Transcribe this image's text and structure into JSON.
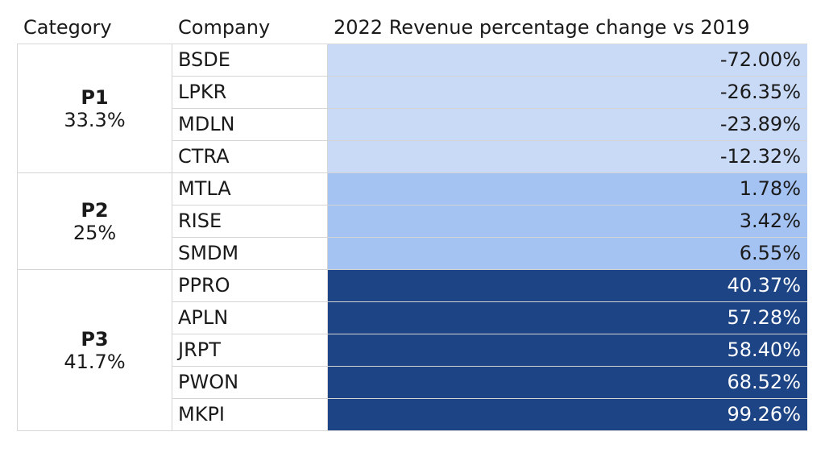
{
  "chart_data": {
    "type": "table",
    "headers": [
      "Category",
      "Company",
      "2022 Revenue percentage change vs 2019"
    ],
    "colors": {
      "P1": {
        "bg": "#c9daf6",
        "text": "#1a1a1a"
      },
      "P2": {
        "bg": "#a4c2f2",
        "text": "#1a1a1a"
      },
      "P3": {
        "bg": "#1d4485",
        "text": "#ffffff"
      }
    },
    "groups": [
      {
        "name": "P1",
        "share": "33.3%",
        "rows": [
          {
            "company": "BSDE",
            "value": "-72.00%"
          },
          {
            "company": "LPKR",
            "value": "-26.35%"
          },
          {
            "company": "MDLN",
            "value": "-23.89%"
          },
          {
            "company": "CTRA",
            "value": "-12.32%"
          }
        ]
      },
      {
        "name": "P2",
        "share": "25%",
        "rows": [
          {
            "company": "MTLA",
            "value": "1.78%"
          },
          {
            "company": "RISE",
            "value": "3.42%"
          },
          {
            "company": "SMDM",
            "value": "6.55%"
          }
        ]
      },
      {
        "name": "P3",
        "share": "41.7%",
        "rows": [
          {
            "company": "PPRO",
            "value": "40.37%"
          },
          {
            "company": "APLN",
            "value": "57.28%"
          },
          {
            "company": "JRPT",
            "value": "58.40%"
          },
          {
            "company": "PWON",
            "value": "68.52%"
          },
          {
            "company": "MKPI",
            "value": "99.26%"
          }
        ]
      }
    ]
  }
}
